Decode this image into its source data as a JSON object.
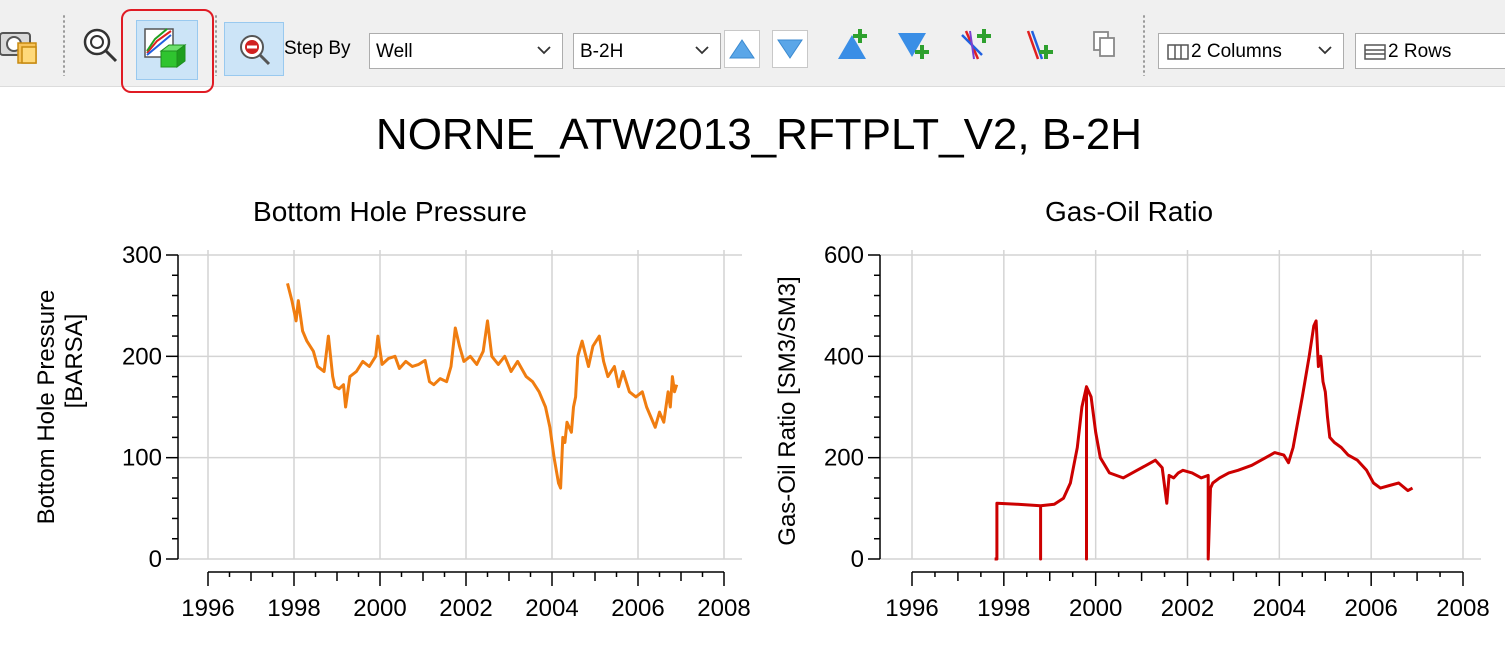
{
  "toolbar": {
    "step_by_label": "Step By",
    "step_by_value": "Well",
    "well_value": "B-2H",
    "columns_value": "2 Columns",
    "rows_value": "2 Rows"
  },
  "plot_window": {
    "title": "NORNE_ATW2013_RFTPLT_V2, B-2H"
  },
  "chart_data": [
    {
      "type": "line",
      "title": "Bottom Hole Pressure",
      "ylabel_line1": "Bottom Hole Pressure",
      "ylabel_line2": "[BARSA]",
      "xlim": [
        1995.3,
        2008.4
      ],
      "ylim": [
        0,
        300
      ],
      "xticks": [
        1996,
        1998,
        2000,
        2002,
        2004,
        2006,
        2008
      ],
      "xtick_labels": [
        "1996",
        "1998",
        "2000",
        "2002",
        "2004",
        "2006",
        "2008"
      ],
      "yticks": [
        0,
        100,
        200,
        300
      ],
      "ytick_labels": [
        "0",
        "100",
        "200",
        "300"
      ],
      "grid": true,
      "color": "#f07d10",
      "x": [
        1997.85,
        1997.95,
        1998.05,
        1998.1,
        1998.2,
        1998.3,
        1998.45,
        1998.55,
        1998.7,
        1998.8,
        1998.9,
        1998.95,
        1999.05,
        1999.15,
        1999.2,
        1999.3,
        1999.45,
        1999.6,
        1999.75,
        1999.9,
        1999.95,
        2000.05,
        2000.2,
        2000.35,
        2000.45,
        2000.6,
        2000.75,
        2000.9,
        2001.05,
        2001.15,
        2001.25,
        2001.4,
        2001.55,
        2001.65,
        2001.75,
        2001.85,
        2001.95,
        2002.1,
        2002.25,
        2002.4,
        2002.5,
        2002.6,
        2002.75,
        2002.9,
        2003.05,
        2003.2,
        2003.4,
        2003.55,
        2003.7,
        2003.85,
        2003.95,
        2004.05,
        2004.15,
        2004.2,
        2004.25,
        2004.3,
        2004.35,
        2004.45,
        2004.5,
        2004.55,
        2004.6,
        2004.7,
        2004.85,
        2004.95,
        2005.1,
        2005.2,
        2005.3,
        2005.45,
        2005.55,
        2005.65,
        2005.8,
        2005.95,
        2006.1,
        2006.2,
        2006.3,
        2006.4,
        2006.5,
        2006.6,
        2006.7,
        2006.75,
        2006.8,
        2006.85,
        2006.9
      ],
      "y": [
        272,
        255,
        235,
        255,
        225,
        215,
        205,
        190,
        185,
        220,
        180,
        170,
        168,
        172,
        150,
        180,
        185,
        195,
        190,
        200,
        220,
        192,
        198,
        200,
        188,
        195,
        190,
        192,
        196,
        175,
        172,
        178,
        175,
        190,
        228,
        210,
        195,
        200,
        192,
        205,
        235,
        200,
        192,
        200,
        185,
        195,
        180,
        175,
        165,
        150,
        130,
        100,
        75,
        70,
        120,
        115,
        135,
        125,
        150,
        160,
        200,
        215,
        190,
        210,
        220,
        195,
        180,
        190,
        170,
        185,
        165,
        160,
        165,
        150,
        140,
        130,
        145,
        135,
        165,
        150,
        180,
        165,
        172
      ]
    },
    {
      "type": "line",
      "title": "Gas-Oil Ratio",
      "ylabel": "Gas-Oil Ratio [SM3/SM3]",
      "xlim": [
        1995.3,
        2008.4
      ],
      "ylim": [
        0,
        600
      ],
      "xticks": [
        1996,
        1998,
        2000,
        2002,
        2004,
        2006,
        2008
      ],
      "xtick_labels": [
        "1996",
        "1998",
        "2000",
        "2002",
        "2004",
        "2006",
        "2008"
      ],
      "yticks": [
        0,
        200,
        400,
        600
      ],
      "ytick_labels": [
        "0",
        "200",
        "400",
        "600"
      ],
      "grid": true,
      "color": "#cc0000",
      "x": [
        1997.8,
        1997.85,
        1997.85,
        1998.3,
        1998.8,
        1998.8,
        1998.8,
        1999.1,
        1999.3,
        1999.45,
        1999.6,
        1999.7,
        1999.8,
        1999.8,
        1999.8,
        1999.9,
        2000.0,
        2000.1,
        2000.3,
        2000.6,
        2000.9,
        2001.1,
        2001.3,
        2001.45,
        2001.55,
        2001.6,
        2001.7,
        2001.8,
        2001.9,
        2002.1,
        2002.3,
        2002.45,
        2002.45,
        2002.5,
        2002.55,
        2002.7,
        2002.9,
        2003.1,
        2003.4,
        2003.7,
        2003.9,
        2004.1,
        2004.2,
        2004.3,
        2004.5,
        2004.65,
        2004.75,
        2004.8,
        2004.85,
        2004.9,
        2004.95,
        2005.0,
        2005.05,
        2005.1,
        2005.2,
        2005.35,
        2005.5,
        2005.7,
        2005.9,
        2006.05,
        2006.2,
        2006.4,
        2006.6,
        2006.8,
        2006.9
      ],
      "y": [
        0,
        0,
        110,
        108,
        105,
        0,
        105,
        108,
        120,
        150,
        220,
        300,
        340,
        0,
        340,
        320,
        250,
        200,
        170,
        160,
        175,
        185,
        195,
        180,
        110,
        165,
        160,
        170,
        175,
        170,
        160,
        165,
        0,
        140,
        150,
        160,
        170,
        175,
        185,
        200,
        210,
        205,
        190,
        220,
        320,
        400,
        460,
        470,
        380,
        400,
        350,
        330,
        280,
        240,
        230,
        220,
        205,
        195,
        175,
        150,
        140,
        145,
        150,
        135,
        140
      ]
    }
  ]
}
